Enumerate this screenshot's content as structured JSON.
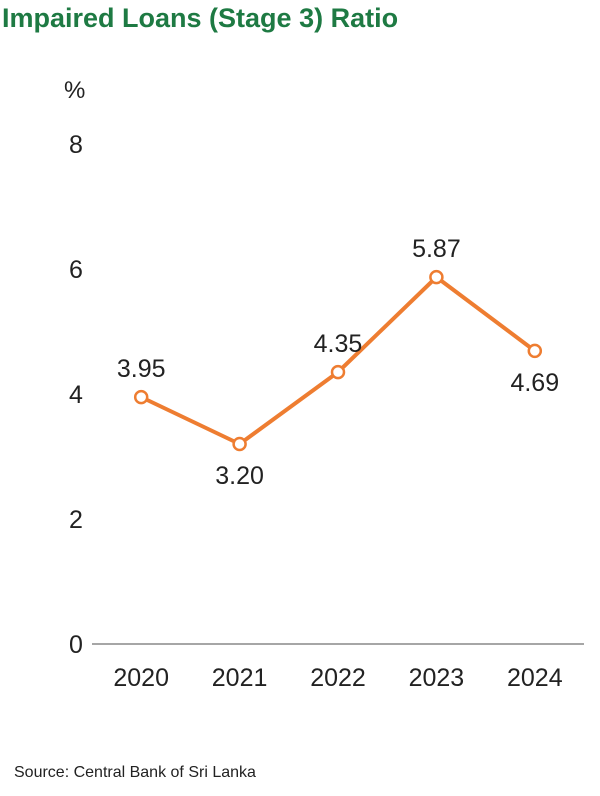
{
  "chart_data": {
    "type": "line",
    "title": "Impaired Loans (Stage 3) Ratio",
    "ylabel": "%",
    "xlabel": "",
    "categories": [
      "2020",
      "2021",
      "2022",
      "2023",
      "2024"
    ],
    "series": [
      {
        "values": [
          3.95,
          3.2,
          4.35,
          5.87,
          4.69
        ],
        "labels": [
          "3.95",
          "3.20",
          "4.35",
          "5.87",
          "4.69"
        ]
      }
    ],
    "yticks": [
      "0",
      "2",
      "4",
      "6",
      "8"
    ],
    "ylim": [
      0,
      8
    ],
    "grid": false,
    "legend": "none",
    "label_positions": [
      "above",
      "below",
      "above",
      "above",
      "below"
    ]
  },
  "source": "Source: Central Bank of Sri Lanka",
  "colors": {
    "title": "#1e7a43",
    "line": "#ee7d31",
    "axis": "#888888",
    "text": "#222222"
  }
}
